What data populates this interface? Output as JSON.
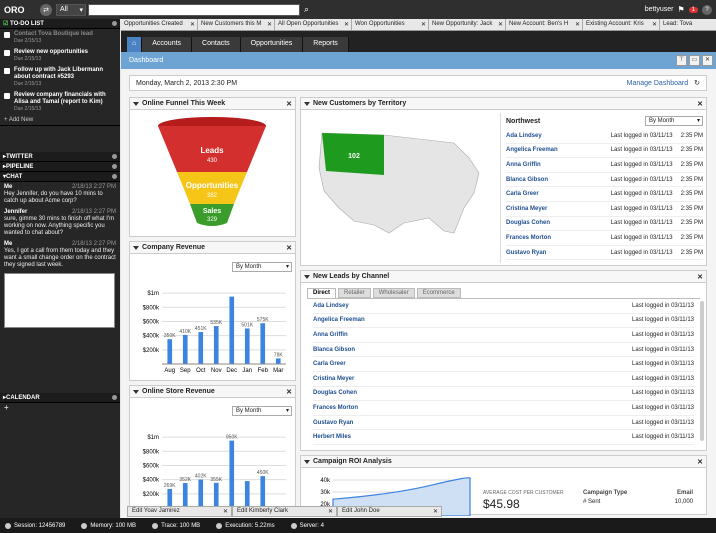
{
  "app": {
    "logo": "ORO",
    "scope": "All",
    "user": "bettyuser",
    "notif_count": "1"
  },
  "sidebar": {
    "todo_title": "TO-DO LIST",
    "todos": [
      {
        "text": "Contact Tova Boutique lead",
        "due": "Due 2/15/13",
        "done": true
      },
      {
        "text": "Review new opportunities",
        "due": "Due 2/15/13",
        "done": false
      },
      {
        "text": "Follow up with Jack Libermann about contract #5293",
        "due": "Due 2/15/13",
        "done": false
      },
      {
        "text": "Review company financials with Alisa and Tamal (report to Kim)",
        "due": "Due 2/15/13",
        "done": false
      }
    ],
    "add_new": "+ Add New",
    "twitter": "TWITTER",
    "pipeline": "PIPELINE",
    "chat": "CHAT",
    "chat_msgs": [
      {
        "who": "Me",
        "time": "2/18/13 2:27 PM",
        "msg": "Hey Jennifer, do you have 10 mins to catch up about Acme corp?"
      },
      {
        "who": "Jennifer",
        "time": "2/18/13 2:27 PM",
        "msg": "sure, gimme 30 mins to finish off what I'm working on now. Anything specific you wanted to chat about?"
      },
      {
        "who": "Me",
        "time": "2/18/13 2:27 PM",
        "msg": "Yes, I got a call from them today and they want a small change order on the contract they signed last week."
      }
    ],
    "calendar": "CALENDAR"
  },
  "tabs": [
    "Opportunities Created",
    "New Customers this M",
    "All Open Opportunities",
    "Won Opportunities",
    "New Opportunity: Jack",
    "New Account: Ben's H",
    "Existing Account: Kris",
    "Lead: Tova"
  ],
  "menu": [
    "Accounts",
    "Contacts",
    "Opportunities",
    "Reports"
  ],
  "crumb": "Dashboard",
  "datebar": {
    "date": "Monday, March 2, 2013  2:30 PM",
    "manage": "Manage Dashboard"
  },
  "funnel": {
    "title": "Online Funnel This Week",
    "leads": "Leads",
    "leads_v": "430",
    "opps": "Opportunities",
    "opps_v": "382",
    "sales": "Sales",
    "sales_v": "329"
  },
  "newcust": {
    "title": "New Customers by Territory",
    "region": "Northwest",
    "map_value": "102",
    "period": "By Month",
    "rows": [
      {
        "name": "Ada Lindsey",
        "log": "Last logged in 03/11/13",
        "time": "2:35 PM"
      },
      {
        "name": "Angelica Freeman",
        "log": "Last logged in 03/11/13",
        "time": "2:35 PM"
      },
      {
        "name": "Anna Griffin",
        "log": "Last logged in 03/11/13",
        "time": "2:35 PM"
      },
      {
        "name": "Blanca Gibson",
        "log": "Last logged in 03/11/13",
        "time": "2:35 PM"
      },
      {
        "name": "Carla Greer",
        "log": "Last logged in 03/11/13",
        "time": "2:35 PM"
      },
      {
        "name": "Cristina Meyer",
        "log": "Last logged in 03/11/13",
        "time": "2:35 PM"
      },
      {
        "name": "Douglas Cohen",
        "log": "Last logged in 03/11/13",
        "time": "2:35 PM"
      },
      {
        "name": "Frances Morton",
        "log": "Last logged in 03/11/13",
        "time": "2:35 PM"
      },
      {
        "name": "Gustavo Ryan",
        "log": "Last logged in 03/11/13",
        "time": "2:35 PM"
      }
    ]
  },
  "leads": {
    "title": "New Leads by Channel",
    "tabs": [
      "Direct",
      "Retailer",
      "Wholesaler",
      "Ecommerce"
    ],
    "rows": [
      {
        "name": "Ada Lindsey",
        "log": "Last logged in 03/11/13"
      },
      {
        "name": "Angelica Freeman",
        "log": "Last logged in 03/11/13"
      },
      {
        "name": "Anna Griffin",
        "log": "Last logged in 03/11/13"
      },
      {
        "name": "Blanca Gibson",
        "log": "Last logged in 03/11/13"
      },
      {
        "name": "Carla Greer",
        "log": "Last logged in 03/11/13"
      },
      {
        "name": "Cristina Meyer",
        "log": "Last logged in 03/11/13"
      },
      {
        "name": "Douglas Cohen",
        "log": "Last logged in 03/11/13"
      },
      {
        "name": "Frances Morton",
        "log": "Last logged in 03/11/13"
      },
      {
        "name": "Gustavo Ryan",
        "log": "Last logged in 03/11/13"
      },
      {
        "name": "Herbert Miles",
        "log": "Last logged in 03/11/13"
      }
    ]
  },
  "revenue": {
    "title": "Company Revenue",
    "period": "By Month"
  },
  "store": {
    "title": "Online Store Revenue",
    "period": "By Month"
  },
  "roi": {
    "title": "Campaign ROI Analysis",
    "avg_label": "AVERAGE COST PER CUSTOMER",
    "avg_value": "$45.98",
    "col1": "Campaign Type",
    "col2": "Email",
    "r1": "# Sent",
    "r1v": "10,000"
  },
  "bottom_windows": [
    "Edit Yoav Jamirez",
    "Edit Kimberly Clark",
    "Edit John Doe"
  ],
  "status": [
    "Session: 12456789",
    "Memory: 100 MB",
    "Trace: 100 MB",
    "Execution: 5.22ms",
    "Server: 4"
  ],
  "chart_data": [
    {
      "type": "bar",
      "title": "Company Revenue",
      "categories": [
        "Aug",
        "Sep",
        "Oct",
        "Nov",
        "Dec",
        "Jan",
        "Feb",
        "Mar"
      ],
      "values": [
        350,
        410,
        451,
        535,
        950,
        501,
        575,
        78
      ],
      "labels": [
        "350K",
        "410K",
        "451K",
        "535K",
        "",
        "501K",
        "575K",
        "78K"
      ],
      "ytick_labels": [
        "$1m",
        "$800k",
        "$600k",
        "$400k",
        "$200k"
      ],
      "yticks": [
        1000,
        800,
        600,
        400,
        200
      ],
      "ylim": [
        0,
        1100
      ]
    },
    {
      "type": "bar",
      "title": "Online Store Revenue",
      "categories": [
        "",
        "",
        "",
        "",
        "",
        "",
        "",
        ""
      ],
      "values": [
        269,
        352,
        402,
        355,
        950,
        380,
        450,
        0
      ],
      "labels": [
        "269K",
        "352K",
        "402K",
        "355K",
        "950K",
        "",
        "450K",
        ""
      ],
      "ytick_labels": [
        "$1m",
        "$800k",
        "$600k",
        "$400k",
        "$200k"
      ],
      "yticks": [
        1000,
        800,
        600,
        400,
        200
      ],
      "ylim": [
        0,
        1100
      ]
    },
    {
      "type": "area",
      "title": "Campaign ROI Analysis",
      "ytick_labels": [
        "40k",
        "30k",
        "20k"
      ],
      "yticks": [
        40000,
        30000,
        20000
      ],
      "ylim": [
        10000,
        45000
      ]
    }
  ]
}
